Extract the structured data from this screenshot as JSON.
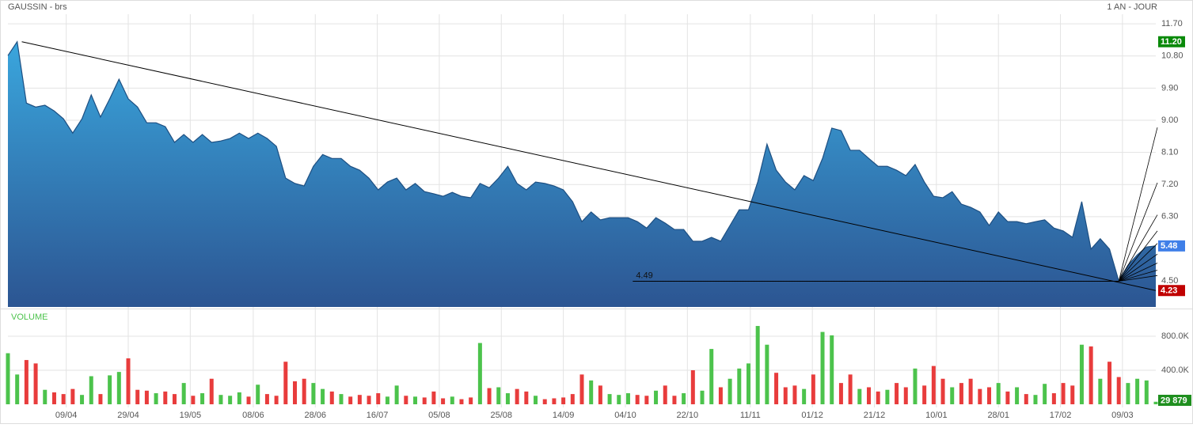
{
  "chart_data": [
    {
      "type": "area",
      "title": "GAUSSIN - brs",
      "subtitle": "1 AN - JOUR",
      "xlim": [
        0,
        124
      ],
      "xticks": [
        {
          "value": 6.3,
          "label": "09/04"
        },
        {
          "value": 13.0,
          "label": "29/04"
        },
        {
          "value": 19.7,
          "label": "19/05"
        },
        {
          "value": 26.5,
          "label": "08/06"
        },
        {
          "value": 33.2,
          "label": "28/06"
        },
        {
          "value": 39.9,
          "label": "16/07"
        },
        {
          "value": 46.6,
          "label": "05/08"
        },
        {
          "value": 53.3,
          "label": "25/08"
        },
        {
          "value": 60.0,
          "label": "14/09"
        },
        {
          "value": 66.7,
          "label": "04/10"
        },
        {
          "value": 73.4,
          "label": "22/10"
        },
        {
          "value": 80.2,
          "label": "11/11"
        },
        {
          "value": 86.9,
          "label": "01/12"
        },
        {
          "value": 93.6,
          "label": "21/12"
        },
        {
          "value": 100.3,
          "label": "10/01"
        },
        {
          "value": 107.0,
          "label": "28/01"
        },
        {
          "value": 113.7,
          "label": "17/02"
        },
        {
          "value": 120.4,
          "label": "09/03"
        }
      ],
      "ylim": [
        3.77,
        11.97
      ],
      "yticks": [
        {
          "value": 11.7,
          "label": "11.70"
        },
        {
          "value": 10.8,
          "label": "10.80"
        },
        {
          "value": 9.9,
          "label": "9.90"
        },
        {
          "value": 9.0,
          "label": "9.00"
        },
        {
          "value": 8.1,
          "label": "8.10"
        },
        {
          "value": 7.2,
          "label": "7.20"
        },
        {
          "value": 6.3,
          "label": "6.30"
        },
        {
          "value": 4.5,
          "label": "4.50"
        }
      ],
      "grid": true,
      "color": "#1d4f82",
      "fill_top": "#3aa6dd",
      "fill_bottom": "#2c5592",
      "values": [
        10.81,
        11.2,
        9.48,
        9.37,
        9.42,
        9.26,
        9.04,
        8.64,
        9.04,
        9.71,
        9.09,
        9.6,
        10.15,
        9.6,
        9.37,
        8.93,
        8.93,
        8.82,
        8.38,
        8.6,
        8.38,
        8.6,
        8.38,
        8.42,
        8.49,
        8.64,
        8.49,
        8.64,
        8.49,
        8.27,
        7.38,
        7.23,
        7.16,
        7.71,
        8.04,
        7.93,
        7.93,
        7.71,
        7.6,
        7.38,
        7.05,
        7.27,
        7.38,
        7.05,
        7.23,
        7.0,
        6.94,
        6.87,
        6.98,
        6.87,
        6.83,
        7.23,
        7.11,
        7.38,
        7.71,
        7.23,
        7.05,
        7.27,
        7.23,
        7.16,
        7.05,
        6.72,
        6.16,
        6.43,
        6.21,
        6.27,
        6.27,
        6.27,
        6.16,
        5.98,
        6.27,
        6.12,
        5.94,
        5.94,
        5.61,
        5.61,
        5.72,
        5.61,
        6.05,
        6.49,
        6.49,
        7.27,
        8.33,
        7.6,
        7.27,
        7.05,
        7.45,
        7.31,
        7.93,
        8.78,
        8.71,
        8.16,
        8.16,
        7.93,
        7.71,
        7.71,
        7.6,
        7.45,
        7.76,
        7.27,
        6.87,
        6.83,
        7.0,
        6.65,
        6.56,
        6.43,
        6.05,
        6.43,
        6.16,
        6.16,
        6.1,
        6.16,
        6.21,
        5.98,
        5.9,
        5.72,
        6.72,
        5.39,
        5.68,
        5.39,
        4.5,
        4.94,
        5.23,
        5.45,
        5.48
      ],
      "high": {
        "value": 11.2,
        "label": "11.20",
        "color": "#0a8a0a"
      },
      "last": {
        "value": 5.48,
        "label": "5.48",
        "color": "#3f7fe8"
      },
      "trendline": {
        "x": [
          1.5,
          124
        ],
        "values": [
          11.2,
          4.23
        ],
        "value_labels": [
          null,
          "4.23"
        ],
        "color": "#c00000"
      },
      "level": {
        "x": [
          67.5,
          120
        ],
        "value": 4.49,
        "label": "4.49"
      },
      "fan": {
        "x": 120,
        "value": 4.49,
        "ends": [
          8.8,
          7.25,
          6.35,
          5.9,
          5.55,
          5.25,
          5.0,
          4.8,
          4.65
        ]
      }
    },
    {
      "type": "volume",
      "title": "VOLUME",
      "xlim": [
        0,
        124
      ],
      "ylim": [
        -37000,
        1097000
      ],
      "yticks": [
        {
          "value": 800000,
          "label": "800.0K"
        },
        {
          "value": 400000,
          "label": "400.0K"
        }
      ],
      "up_color": "#4cc34c",
      "down_color": "#e83c3c",
      "values": [
        600000,
        350000,
        520000,
        480000,
        170000,
        140000,
        120000,
        180000,
        110000,
        330000,
        120000,
        340000,
        380000,
        540000,
        170000,
        160000,
        130000,
        150000,
        120000,
        250000,
        100000,
        130000,
        300000,
        110000,
        100000,
        140000,
        90000,
        230000,
        120000,
        100000,
        500000,
        270000,
        300000,
        250000,
        180000,
        150000,
        120000,
        90000,
        110000,
        100000,
        130000,
        90000,
        220000,
        100000,
        90000,
        80000,
        150000,
        70000,
        90000,
        60000,
        80000,
        720000,
        190000,
        200000,
        130000,
        180000,
        150000,
        100000,
        60000,
        70000,
        80000,
        120000,
        350000,
        280000,
        220000,
        120000,
        110000,
        130000,
        110000,
        100000,
        160000,
        220000,
        100000,
        130000,
        400000,
        160000,
        650000,
        200000,
        300000,
        420000,
        480000,
        920000,
        700000,
        370000,
        200000,
        220000,
        180000,
        350000,
        850000,
        810000,
        250000,
        350000,
        180000,
        200000,
        150000,
        170000,
        250000,
        200000,
        420000,
        220000,
        450000,
        300000,
        200000,
        250000,
        300000,
        180000,
        200000,
        250000,
        150000,
        200000,
        120000,
        110000,
        240000,
        130000,
        250000,
        220000,
        700000,
        680000,
        300000,
        500000,
        320000,
        250000,
        300000,
        280000,
        29879
      ],
      "last": {
        "value": 29879,
        "label": "29 879",
        "color": "#1f8f1f"
      }
    }
  ]
}
